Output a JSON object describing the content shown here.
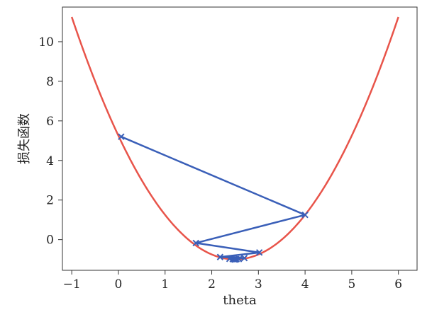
{
  "chart_data": {
    "type": "line",
    "xlabel": "theta",
    "ylabel": "损失函数",
    "xlim": [
      -1.2,
      6.4
    ],
    "ylim": [
      -1.55,
      11.75
    ],
    "xticks": [
      -1,
      0,
      1,
      2,
      3,
      4,
      5,
      6
    ],
    "xtick_labels": [
      "−1",
      "0",
      "1",
      "2",
      "3",
      "4",
      "5",
      "6"
    ],
    "yticks": [
      0,
      2,
      4,
      6,
      8,
      10
    ],
    "ytick_labels": [
      "0",
      "2",
      "4",
      "6",
      "8",
      "10"
    ],
    "grid": false,
    "series": [
      {
        "kind": "curve",
        "color": "#e8544a",
        "function": "(x-2.5)^2 - 1",
        "x_range": [
          -1,
          6
        ]
      },
      {
        "kind": "path",
        "color": "#3a5fb8",
        "marker": "x",
        "points": [
          [
            0.06,
            5.2
          ],
          [
            4.0,
            1.25
          ],
          [
            1.66,
            -0.17
          ],
          [
            3.02,
            -0.65
          ],
          [
            2.18,
            -0.88
          ],
          [
            2.7,
            -0.93
          ],
          [
            2.38,
            -0.97
          ],
          [
            2.58,
            -0.98
          ],
          [
            2.45,
            -0.99
          ],
          [
            2.53,
            -0.99
          ],
          [
            2.48,
            -0.99
          ],
          [
            2.51,
            -0.99
          ],
          [
            2.49,
            -1.0
          ],
          [
            2.5,
            -1.0
          ]
        ]
      }
    ]
  }
}
